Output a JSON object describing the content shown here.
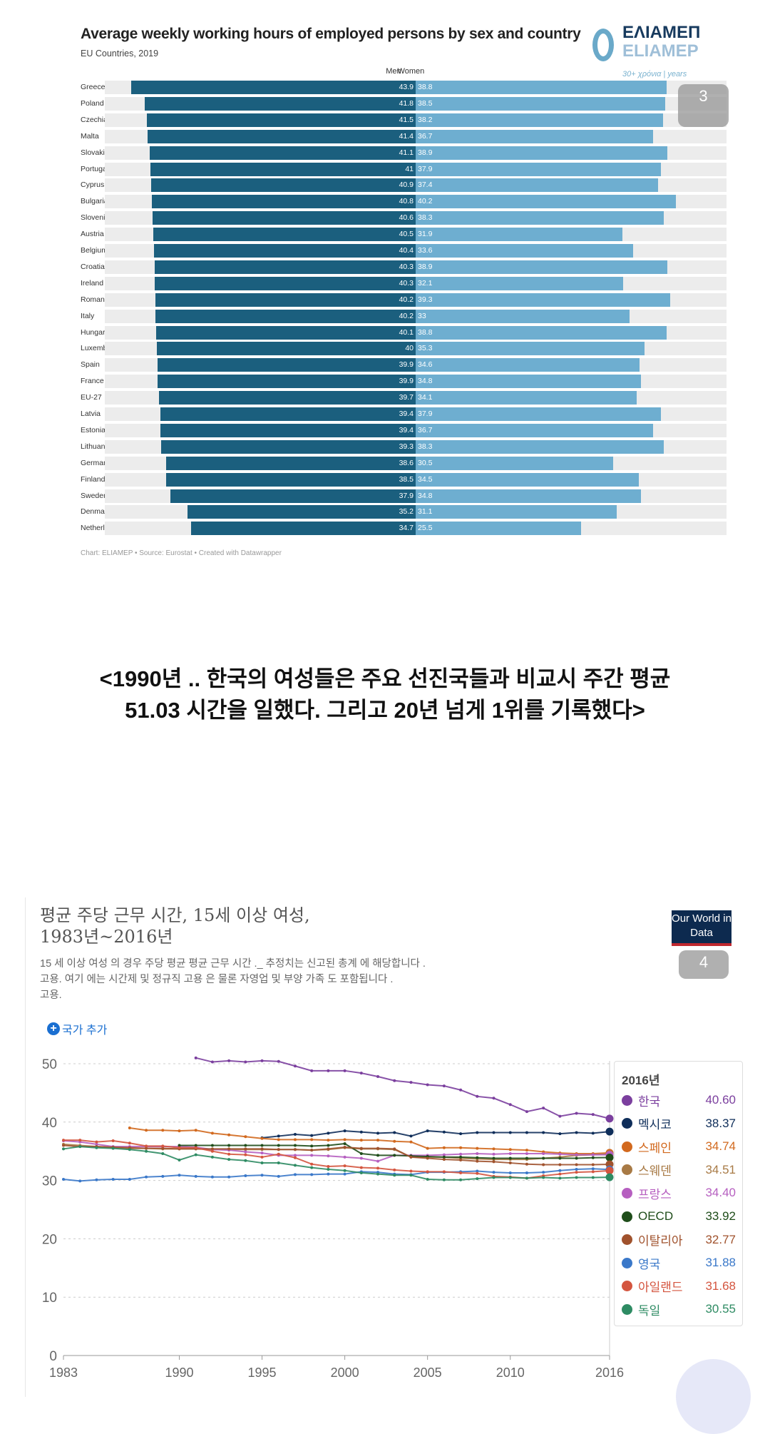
{
  "chart_data": [
    {
      "type": "bar",
      "title": "Average weekly working hours of employed persons by sex and country",
      "subtitle": "EU Countries, 2019",
      "legend": [
        "Men",
        "Women"
      ],
      "legend_placement": "top-center",
      "footer": "Chart: ELIAMEP • Source: Eurostat • Created with Datawrapper",
      "colors": {
        "men": "#1b5f7e",
        "women": "#6eaed0",
        "track": "#ececec"
      },
      "categories": [
        "Greece",
        "Poland",
        "Czechia",
        "Malta",
        "Slovakia",
        "Portugal",
        "Cyprus",
        "Bulgaria",
        "Slovenia",
        "Austria",
        "Belgium",
        "Croatia",
        "Ireland",
        "Romania",
        "Italy",
        "Hungary",
        "Luxembourg",
        "Spain",
        "France",
        "EU-27",
        "Latvia",
        "Estonia",
        "Lithuania",
        "Germany",
        "Finland",
        "Sweden",
        "Denmark",
        "Netherlands"
      ],
      "series": [
        {
          "name": "Men",
          "values": [
            43.9,
            41.8,
            41.5,
            41.4,
            41.1,
            41,
            40.9,
            40.8,
            40.6,
            40.5,
            40.4,
            40.3,
            40.3,
            40.2,
            40.2,
            40.1,
            40,
            39.9,
            39.9,
            39.7,
            39.4,
            39.4,
            39.3,
            38.6,
            38.5,
            37.9,
            35.2,
            34.7
          ]
        },
        {
          "name": "Women",
          "values": [
            38.8,
            38.5,
            38.2,
            36.7,
            38.9,
            37.9,
            37.4,
            40.2,
            38.3,
            31.9,
            33.6,
            38.9,
            32.1,
            39.3,
            33,
            38.8,
            35.3,
            34.6,
            34.8,
            34.1,
            37.9,
            36.7,
            38.3,
            30.5,
            34.5,
            34.8,
            31.1,
            25.5
          ]
        }
      ]
    },
    {
      "type": "line",
      "title": "평균 주당 근무 시간, 15세 이상 여성,",
      "title2": "1983년~2016년",
      "subtitle": [
        "15 세 이상 여성 의 경우 주당 평균 평균 근무 시간 ._ 추정치는 신고된 총계 에 해당합니다 .",
        "고용. 여기 에는 시간제 및 정규직 고용 은 물론 자영업 및 부양 가족 도 포함됩니다 .",
        "고용."
      ],
      "ylim": [
        0,
        50
      ],
      "yticks": [
        "0",
        "10",
        "20",
        "30",
        "40",
        "50"
      ],
      "xlim": [
        1983,
        2016
      ],
      "xticks": [
        "1983",
        "1990",
        "1995",
        "2000",
        "2005",
        "2010",
        "2016"
      ],
      "grid": true,
      "legend_placement": "right",
      "legend_title": "2016년",
      "series": [
        {
          "name": "한국",
          "color": "#7b3f9e",
          "end": "40.60",
          "start": 1991,
          "values": [
            51.0,
            50.3,
            50.5,
            50.3,
            50.5,
            50.4,
            49.6,
            48.8,
            48.8,
            48.8,
            48.4,
            47.8,
            47.1,
            46.8,
            46.4,
            46.2,
            45.5,
            44.4,
            44.1,
            43.0,
            41.8,
            42.4,
            41.0,
            41.5,
            41.3,
            40.6
          ]
        },
        {
          "name": "멕시코",
          "color": "#0f2e5a",
          "end": "38.37",
          "start": 1995,
          "values": [
            37.3,
            37.6,
            37.9,
            37.7,
            38.1,
            38.5,
            38.3,
            38.1,
            38.2,
            37.6,
            38.5,
            38.3,
            38.0,
            38.2,
            38.2,
            38.2,
            38.2,
            38.2,
            38.0,
            38.2,
            38.1,
            38.37
          ]
        },
        {
          "name": "스페인",
          "color": "#d2691e",
          "end": "34.74",
          "start": 1987,
          "values": [
            39.0,
            38.6,
            38.6,
            38.5,
            38.6,
            38.1,
            37.8,
            37.5,
            37.2,
            37.0,
            37.0,
            37.0,
            36.9,
            37.0,
            36.9,
            36.9,
            36.7,
            36.6,
            35.5,
            35.6,
            35.6,
            35.5,
            35.4,
            35.3,
            35.2,
            34.9,
            34.7,
            34.6,
            34.6,
            34.74
          ]
        },
        {
          "name": "스웨덴",
          "color": "#a87a45",
          "end": "34.51",
          "start": 1983,
          "values": [
            36.2,
            36.0,
            35.8,
            35.6,
            35.5,
            35.5,
            35.4,
            35.4,
            35.4,
            35.3,
            35.3,
            35.3,
            35.3,
            35.3,
            35.3,
            35.2,
            35.3,
            35.6,
            35.4,
            35.4,
            35.3,
            34.0,
            34.0,
            34.0,
            33.8,
            33.7,
            33.6,
            33.6,
            33.6,
            33.8,
            34.0,
            34.3,
            34.4,
            34.51
          ]
        },
        {
          "name": "프랑스",
          "color": "#b65fc0",
          "end": "34.40",
          "start": 1983,
          "values": [
            36.8,
            36.6,
            36.2,
            35.8,
            35.8,
            35.8,
            35.8,
            35.8,
            35.7,
            35.3,
            35.2,
            34.9,
            34.7,
            34.3,
            34.3,
            34.3,
            34.2,
            34.0,
            33.8,
            33.3,
            34.3,
            34.3,
            34.3,
            34.4,
            34.5,
            34.6,
            34.5,
            34.6,
            34.6,
            34.6,
            34.5,
            34.4,
            34.4,
            34.4
          ]
        },
        {
          "name": "OECD",
          "color": "#1f4d1a",
          "end": "33.92",
          "start": 1990,
          "values": [
            36.0,
            36.0,
            36.0,
            36.0,
            36.0,
            36.0,
            36.0,
            36.0,
            35.9,
            36.0,
            36.3,
            34.6,
            34.3,
            34.3,
            34.2,
            34.1,
            34.0,
            34.0,
            33.9,
            33.8,
            33.8,
            33.8,
            33.8,
            33.8,
            33.8,
            33.9,
            33.92
          ]
        },
        {
          "name": "이탈리아",
          "color": "#a0522d",
          "end": "32.77",
          "start": 1983,
          "values": [
            36.0,
            35.8,
            35.8,
            35.7,
            35.6,
            35.5,
            35.5,
            35.4,
            35.4,
            35.4,
            35.4,
            35.4,
            35.4,
            35.3,
            35.3,
            35.2,
            35.4,
            35.7,
            35.5,
            35.5,
            35.4,
            34.0,
            33.8,
            33.6,
            33.5,
            33.3,
            33.2,
            33.0,
            32.8,
            32.7,
            32.7,
            32.7,
            32.7,
            32.77
          ]
        },
        {
          "name": "영국",
          "color": "#3a78c9",
          "end": "31.88",
          "start": 1983,
          "values": [
            30.2,
            29.9,
            30.1,
            30.2,
            30.2,
            30.6,
            30.7,
            30.9,
            30.7,
            30.6,
            30.6,
            30.8,
            30.9,
            30.7,
            31.0,
            31.0,
            31.1,
            31.1,
            31.5,
            31.4,
            31.1,
            31.0,
            31.4,
            31.4,
            31.5,
            31.6,
            31.4,
            31.3,
            31.3,
            31.4,
            31.7,
            31.9,
            32.0,
            31.88
          ]
        },
        {
          "name": "아일랜드",
          "color": "#d4553f",
          "end": "31.68",
          "start": 1983,
          "values": [
            36.9,
            36.9,
            36.6,
            36.8,
            36.4,
            35.9,
            35.9,
            35.6,
            35.6,
            35.0,
            34.5,
            34.4,
            34.0,
            34.5,
            33.9,
            32.8,
            32.4,
            32.5,
            32.2,
            32.1,
            31.8,
            31.6,
            31.5,
            31.5,
            31.3,
            31.2,
            30.7,
            30.6,
            30.4,
            30.8,
            31.1,
            31.4,
            31.5,
            31.68
          ]
        },
        {
          "name": "독일",
          "color": "#2e8b63",
          "end": "30.55",
          "start": 1983,
          "values": [
            35.4,
            35.8,
            35.6,
            35.5,
            35.3,
            35.0,
            34.6,
            33.5,
            34.4,
            34.0,
            33.6,
            33.4,
            33.0,
            33.0,
            32.6,
            32.2,
            31.9,
            31.7,
            31.3,
            31.1,
            30.9,
            30.9,
            30.2,
            30.1,
            30.1,
            30.3,
            30.5,
            30.5,
            30.4,
            30.5,
            30.4,
            30.5,
            30.5,
            30.55
          ]
        }
      ]
    }
  ],
  "top": {
    "logo_text": "ΕΛΙΑΜΕΠ",
    "logo_text2": "ELIAMEP",
    "logo_tagline": "30+ χρόνια | years",
    "badge": "3"
  },
  "caption": {
    "line1": "<1990년 .. 한국의 여성들은 주요 선진국들과 비교시 주간 평균",
    "line2": "51.03 시간을 일했다. 그리고 20년 넘게 1위를 기록했다>"
  },
  "bottom": {
    "add_country": "국가 추가",
    "logo": "Our World in Data",
    "badge": "4"
  }
}
